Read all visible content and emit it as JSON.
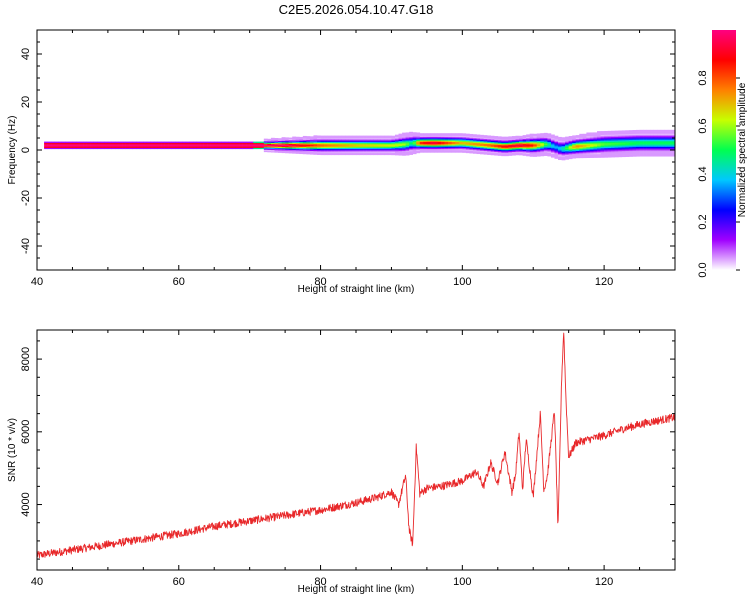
{
  "title": "C2E5.2026.054.10.47.G18",
  "chart_data": [
    {
      "type": "heatmap",
      "title": "C2E5.2026.054.10.47.G18",
      "xlabel": "Height of straight line (km)",
      "ylabel": "Frequency (Hz)",
      "xlim": [
        40,
        130
      ],
      "ylim": [
        -50,
        50
      ],
      "x_ticks": [
        40,
        60,
        80,
        100,
        120
      ],
      "y_ticks": [
        -40,
        -20,
        0,
        20,
        40
      ],
      "colorbar": {
        "label": "Normalized spectral amplitude",
        "range": [
          0,
          1
        ],
        "ticks": [
          0.0,
          0.2,
          0.4,
          0.6,
          0.8
        ],
        "tick_labels": [
          "0.0",
          "0.2",
          "0.4",
          "0.6",
          "0.8"
        ],
        "colormap": [
          "#ffffff",
          "#a000ff",
          "#0000ff",
          "#00c8ff",
          "#00ff50",
          "#c8ff00",
          "#ff8000",
          "#ff0000",
          "#ff0080"
        ]
      },
      "band": {
        "x": [
          41,
          50,
          60,
          70,
          75,
          80,
          85,
          90,
          92,
          93,
          94,
          96,
          100,
          104,
          106,
          108,
          110,
          112,
          113,
          114,
          116,
          120,
          125,
          130
        ],
        "center_hz": [
          2,
          2,
          2,
          2,
          2,
          2,
          2,
          2,
          2.5,
          3,
          3,
          3,
          3,
          2,
          1.5,
          2,
          2,
          2.5,
          1.5,
          0.5,
          1.5,
          2.5,
          3,
          3
        ],
        "peak_amplitude": [
          1.0,
          1.0,
          1.0,
          1.0,
          1.0,
          0.8,
          0.7,
          0.65,
          0.6,
          0.45,
          0.85,
          0.95,
          0.7,
          0.8,
          0.9,
          0.95,
          0.85,
          0.5,
          0.35,
          0.4,
          0.75,
          0.55,
          0.5,
          0.5
        ],
        "halfwidth_hz": [
          1.5,
          1.5,
          1.5,
          1.5,
          2,
          2.5,
          2.5,
          2.5,
          3,
          3,
          2.5,
          2.5,
          2.5,
          2.5,
          2.5,
          2.5,
          3,
          3,
          3,
          3,
          3,
          3.5,
          3.5,
          3.5
        ]
      }
    },
    {
      "type": "line",
      "xlabel": "Height of straight line (km)",
      "ylabel": "SNR (10 * v/v)",
      "xlim": [
        40,
        130
      ],
      "ylim": [
        2200,
        8800
      ],
      "x_ticks": [
        40,
        60,
        80,
        100,
        120
      ],
      "y_ticks": [
        4000,
        6000,
        8000
      ],
      "color": "#e8282a",
      "series": [
        {
          "x": [
            40,
            45,
            50,
            55,
            60,
            65,
            70,
            75,
            80,
            85,
            88,
            90,
            91,
            92,
            92.5,
            93,
            93.5,
            94,
            95,
            97,
            100,
            102,
            103,
            104,
            105,
            106,
            107,
            107.5,
            108,
            108.5,
            109,
            110,
            111,
            111.5,
            112,
            113,
            113.5,
            114,
            114.3,
            114.6,
            115,
            116,
            118,
            120,
            123,
            126,
            130
          ],
          "y": [
            2600,
            2750,
            2900,
            3050,
            3200,
            3400,
            3550,
            3700,
            3850,
            4050,
            4200,
            4350,
            4000,
            4800,
            3300,
            2900,
            5600,
            4300,
            4450,
            4500,
            4650,
            4900,
            4500,
            5150,
            4600,
            5450,
            4350,
            4800,
            6000,
            4400,
            5800,
            4200,
            6500,
            4400,
            4800,
            6600,
            3300,
            7400,
            8800,
            7000,
            5300,
            5700,
            5800,
            5900,
            6100,
            6250,
            6400
          ],
          "noise": 110
        }
      ]
    }
  ]
}
